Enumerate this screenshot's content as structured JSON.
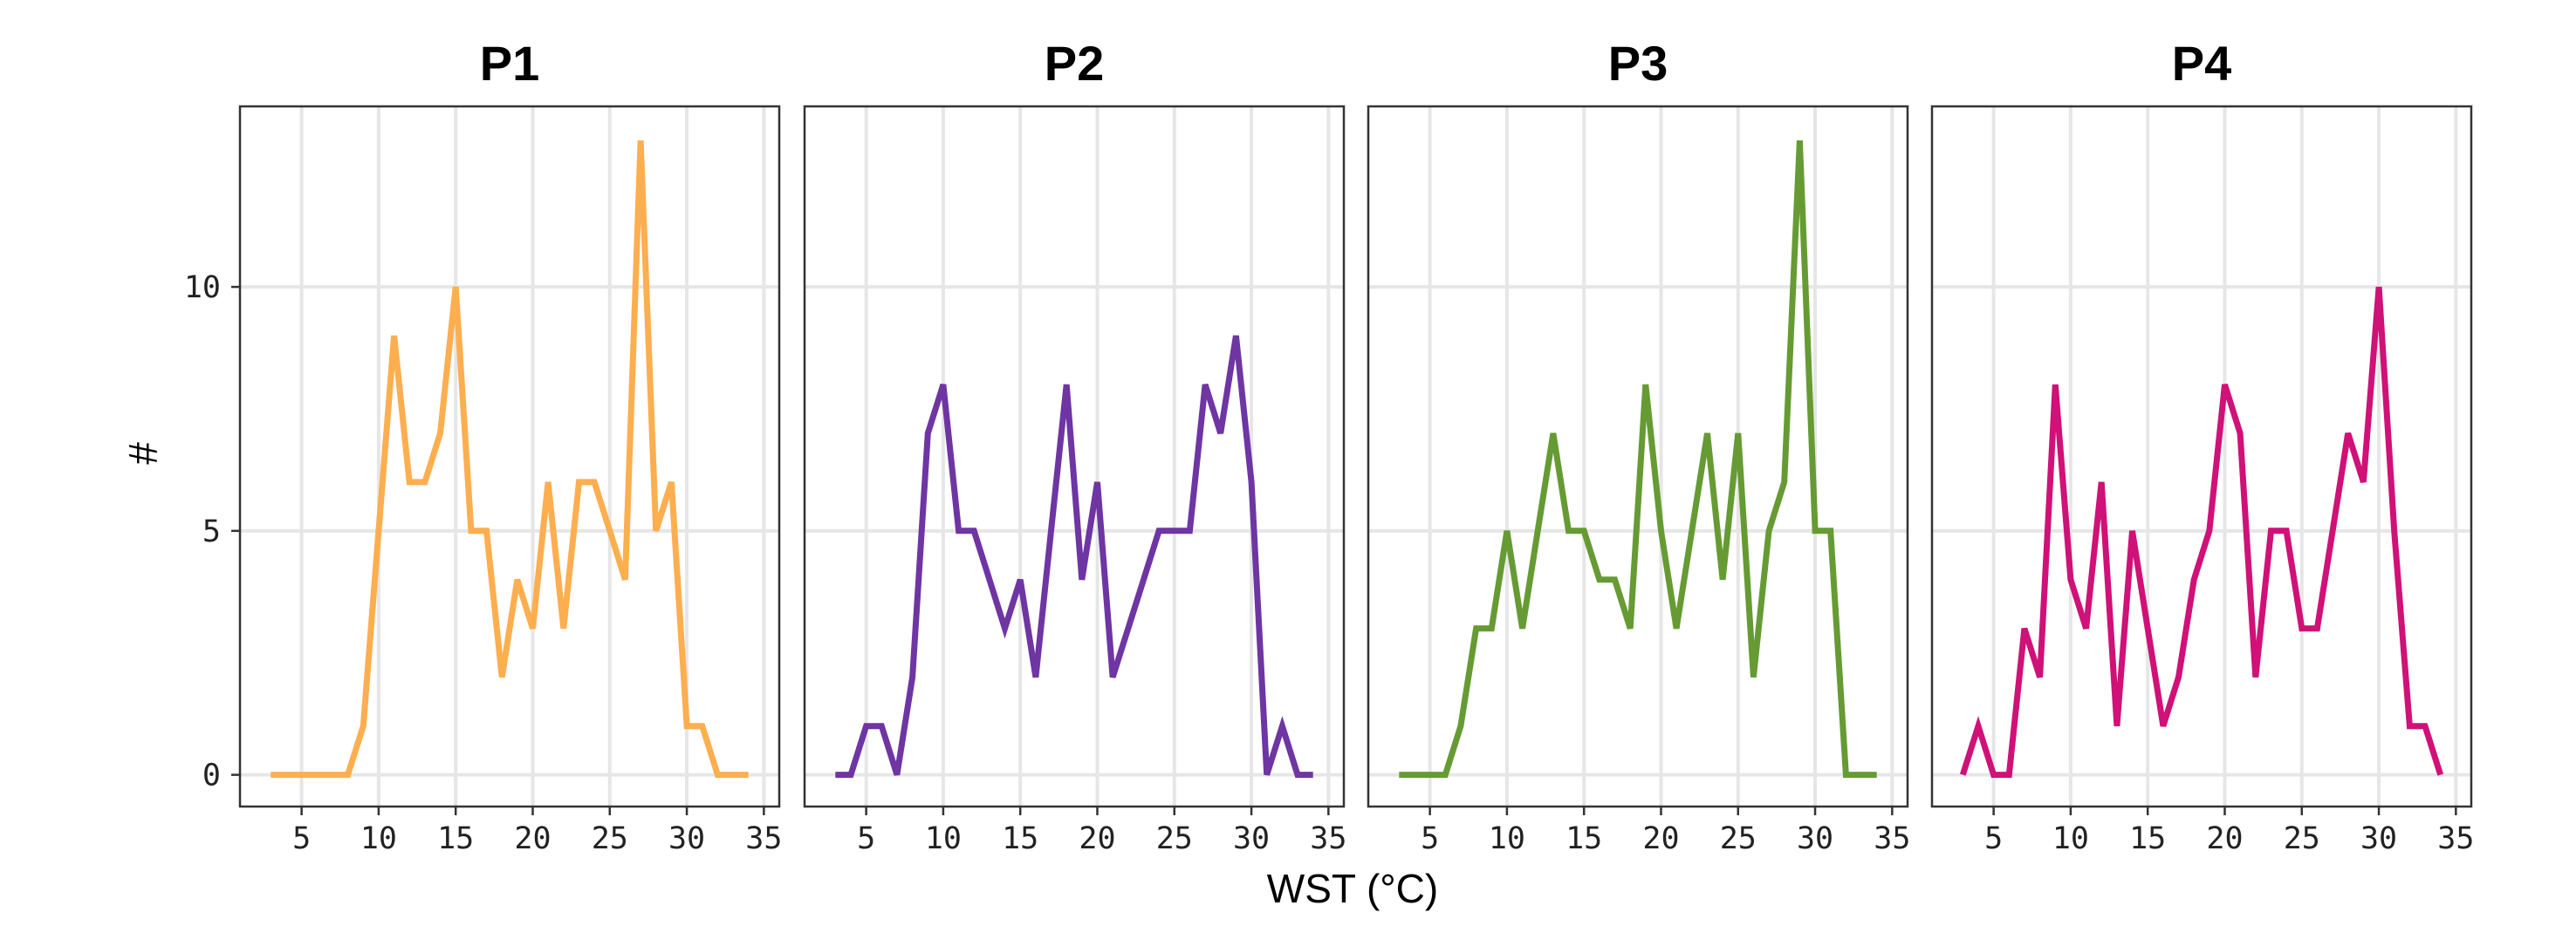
{
  "chart_data": {
    "type": "line",
    "xlabel": "WST (°C)",
    "ylabel": "#",
    "xlim": [
      1,
      36
    ],
    "ylim": [
      -0.65,
      13.7
    ],
    "x_ticks": [
      5,
      10,
      15,
      20,
      25,
      30,
      35
    ],
    "y_ticks": [
      0,
      5,
      10
    ],
    "grid": true,
    "x": [
      3,
      4,
      5,
      6,
      7,
      8,
      9,
      10,
      11,
      12,
      13,
      14,
      15,
      16,
      17,
      18,
      19,
      20,
      21,
      22,
      23,
      24,
      25,
      26,
      27,
      28,
      29,
      30,
      31,
      32,
      33,
      34
    ],
    "panels": [
      {
        "title": "P1",
        "color": "#fdae4f",
        "values": [
          0,
          0,
          0,
          0,
          0,
          0,
          1,
          5,
          9,
          6,
          6,
          7,
          10,
          5,
          5,
          2,
          4,
          3,
          6,
          3,
          6,
          6,
          5,
          4,
          13,
          5,
          6,
          1,
          1,
          0,
          0,
          0
        ]
      },
      {
        "title": "P2",
        "color": "#6e35a3",
        "values": [
          0,
          0,
          1,
          1,
          0,
          2,
          7,
          8,
          5,
          5,
          4,
          3,
          4,
          2,
          5,
          8,
          4,
          6,
          2,
          3,
          4,
          5,
          5,
          5,
          8,
          7,
          9,
          6,
          0,
          1,
          0,
          0
        ]
      },
      {
        "title": "P3",
        "color": "#669b34",
        "values": [
          0,
          0,
          0,
          0,
          1,
          3,
          3,
          5,
          3,
          5,
          7,
          5,
          5,
          4,
          4,
          3,
          8,
          5,
          3,
          5,
          7,
          4,
          7,
          2,
          5,
          6,
          13,
          5,
          5,
          0,
          0,
          0
        ]
      },
      {
        "title": "P4",
        "color": "#cf1178",
        "values": [
          0,
          1,
          0,
          0,
          3,
          2,
          8,
          4,
          3,
          6,
          1,
          5,
          3,
          1,
          2,
          4,
          5,
          8,
          7,
          2,
          5,
          5,
          3,
          3,
          5,
          7,
          6,
          10,
          5,
          1,
          1,
          0
        ]
      }
    ]
  }
}
